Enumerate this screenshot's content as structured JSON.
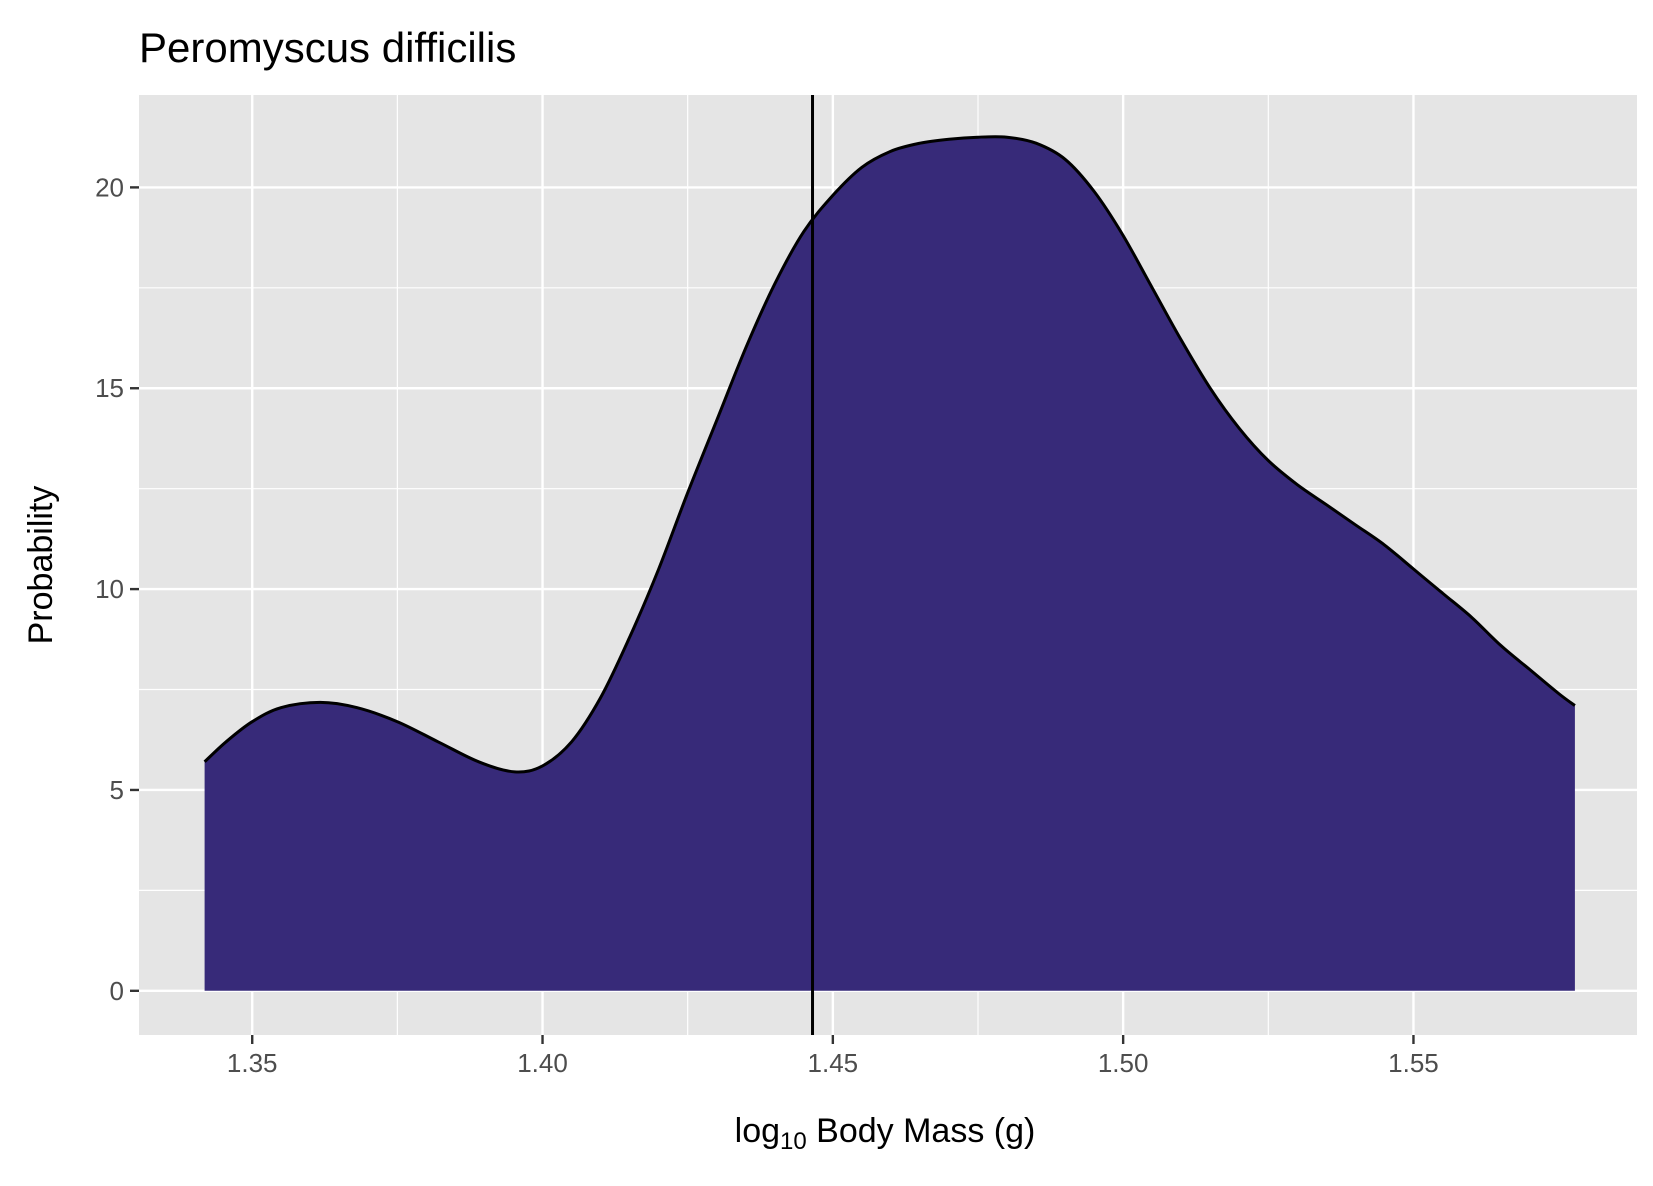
{
  "chart_data": {
    "type": "area",
    "title": "Peromyscus difficilis",
    "xlabel": {
      "prefix": "log",
      "subscript": "10",
      "suffix": " Body Mass (g)"
    },
    "ylabel": "Probability",
    "xlim": [
      1.3305,
      1.5885
    ],
    "ylim": [
      -1.1,
      22.3
    ],
    "x_ticks": [
      {
        "value": 1.35,
        "label": "1.35"
      },
      {
        "value": 1.4,
        "label": "1.40"
      },
      {
        "value": 1.45,
        "label": "1.45"
      },
      {
        "value": 1.5,
        "label": "1.50"
      },
      {
        "value": 1.55,
        "label": "1.55"
      }
    ],
    "y_ticks": [
      {
        "value": 0,
        "label": "0"
      },
      {
        "value": 5,
        "label": "5"
      },
      {
        "value": 10,
        "label": "10"
      },
      {
        "value": 15,
        "label": "15"
      },
      {
        "value": 20,
        "label": "20"
      }
    ],
    "x_minor_breaks": [
      1.375,
      1.425,
      1.475,
      1.525
    ],
    "y_minor_breaks": [
      2.5,
      7.5,
      12.5,
      17.5
    ],
    "grid": true,
    "reference_line_x": 1.4465,
    "density": {
      "x": [
        1.3418,
        1.3455,
        1.35,
        1.355,
        1.3617,
        1.368,
        1.375,
        1.382,
        1.389,
        1.3952,
        1.4,
        1.405,
        1.41,
        1.415,
        1.42,
        1.425,
        1.43,
        1.435,
        1.44,
        1.445,
        1.45,
        1.455,
        1.46,
        1.465,
        1.47,
        1.475,
        1.48,
        1.485,
        1.49,
        1.495,
        1.5,
        1.505,
        1.51,
        1.515,
        1.52,
        1.525,
        1.53,
        1.535,
        1.54,
        1.545,
        1.55,
        1.555,
        1.56,
        1.565,
        1.57,
        1.575,
        1.5778
      ],
      "y": [
        5.7,
        6.2,
        6.7,
        7.05,
        7.18,
        7.05,
        6.7,
        6.2,
        5.7,
        5.45,
        5.6,
        6.2,
        7.3,
        8.8,
        10.5,
        12.4,
        14.2,
        16.0,
        17.6,
        18.9,
        19.8,
        20.5,
        20.9,
        21.1,
        21.2,
        21.25,
        21.25,
        21.1,
        20.7,
        19.9,
        18.8,
        17.5,
        16.2,
        15.0,
        14.0,
        13.2,
        12.6,
        12.1,
        11.6,
        11.1,
        10.5,
        9.9,
        9.3,
        8.6,
        8.0,
        7.4,
        7.1
      ]
    },
    "fill_color": "#372A79",
    "line_color": "#000000",
    "panel_background": "#E5E5E5",
    "grid_color": "#FFFFFF"
  }
}
